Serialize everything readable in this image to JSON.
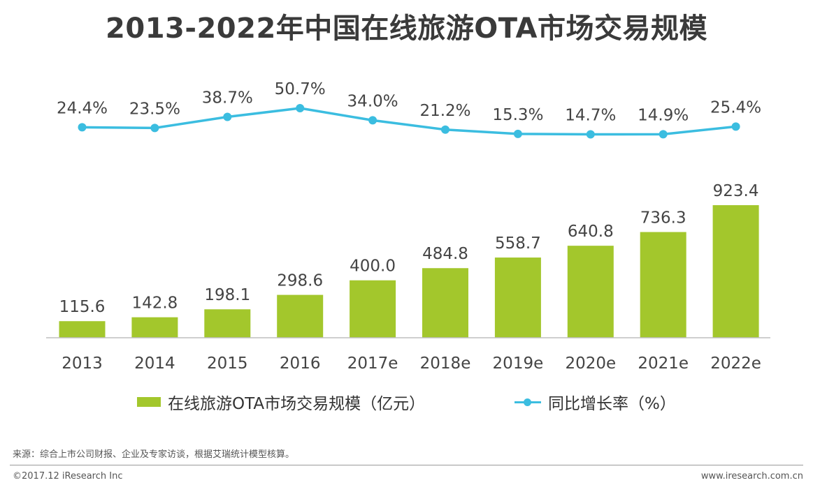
{
  "colors": {
    "bar": "#a3c72c",
    "line": "#3bbde0",
    "axis": "#bfbfbf",
    "text": "#444444"
  },
  "chart_data": {
    "type": "bar+line",
    "title": "2013-2022年中国在线旅游OTA市场交易规模",
    "categories": [
      "2013",
      "2014",
      "2015",
      "2016",
      "2017e",
      "2018e",
      "2019e",
      "2020e",
      "2021e",
      "2022e"
    ],
    "series": [
      {
        "name": "在线旅游OTA市场交易规模（亿元）",
        "type": "bar",
        "values": [
          115.6,
          142.8,
          198.1,
          298.6,
          400.0,
          484.8,
          558.7,
          640.8,
          736.3,
          923.4
        ],
        "labels": [
          "115.6",
          "142.8",
          "198.1",
          "298.6",
          "400.0",
          "484.8",
          "558.7",
          "640.8",
          "736.3",
          "923.4"
        ]
      },
      {
        "name": "同比增长率（%）",
        "type": "line",
        "values": [
          24.4,
          23.5,
          38.7,
          50.7,
          34.0,
          21.2,
          15.3,
          14.7,
          14.9,
          25.4
        ],
        "labels": [
          "24.4%",
          "23.5%",
          "38.7%",
          "50.7%",
          "34.0%",
          "21.2%",
          "15.3%",
          "14.7%",
          "14.9%",
          "25.4%"
        ]
      }
    ],
    "bar_ylim": [
      0,
      1000
    ],
    "line_ylim": [
      -50,
      70
    ],
    "legend_position": "bottom"
  },
  "legend": {
    "bar_label": "在线旅游OTA市场交易规模（亿元）",
    "line_label": "同比增长率（%）"
  },
  "footer": {
    "source": "来源：综合上市公司财报、企业及专家访谈，根据艾瑞统计模型核算。",
    "copyright": "©2017.12 iResearch Inc",
    "website": "www.iresearch.com.cn"
  }
}
